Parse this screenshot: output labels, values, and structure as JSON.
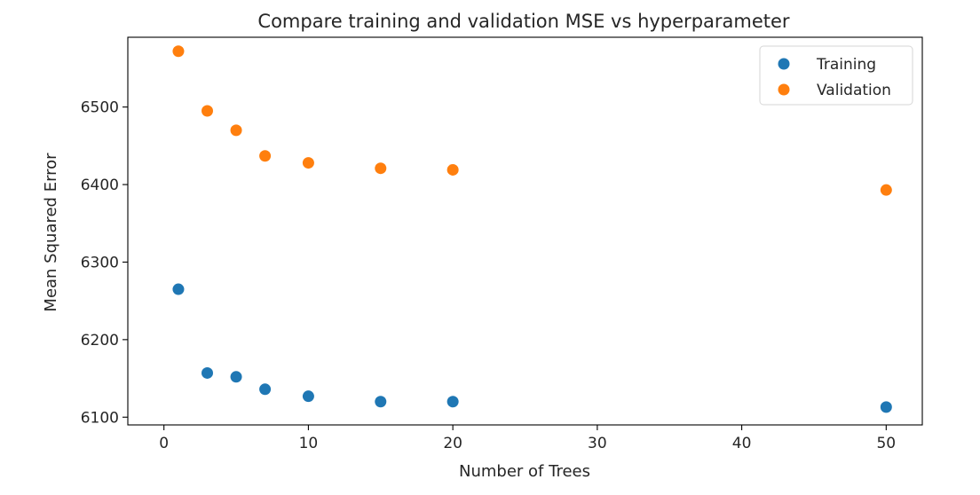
{
  "chart_data": {
    "type": "scatter",
    "title": "Compare training and validation MSE vs hyperparameter",
    "xlabel": "Number of Trees",
    "ylabel": "Mean Squared Error",
    "xlim": [
      -2.5,
      52.5
    ],
    "ylim": [
      6090,
      6590
    ],
    "x_ticks": [
      0,
      10,
      20,
      30,
      40,
      50
    ],
    "y_ticks": [
      6100,
      6200,
      6300,
      6400,
      6500
    ],
    "grid": false,
    "legend_position": "top-right",
    "series": [
      {
        "name": "Training",
        "color": "#1f77b4",
        "x": [
          1,
          3,
          5,
          7,
          10,
          15,
          20,
          50
        ],
        "y": [
          6265,
          6157,
          6152,
          6136,
          6127,
          6120,
          6120,
          6113
        ]
      },
      {
        "name": "Validation",
        "color": "#ff7f0e",
        "x": [
          1,
          3,
          5,
          7,
          10,
          15,
          20,
          50
        ],
        "y": [
          6572,
          6495,
          6470,
          6437,
          6428,
          6421,
          6419,
          6393
        ]
      }
    ]
  }
}
